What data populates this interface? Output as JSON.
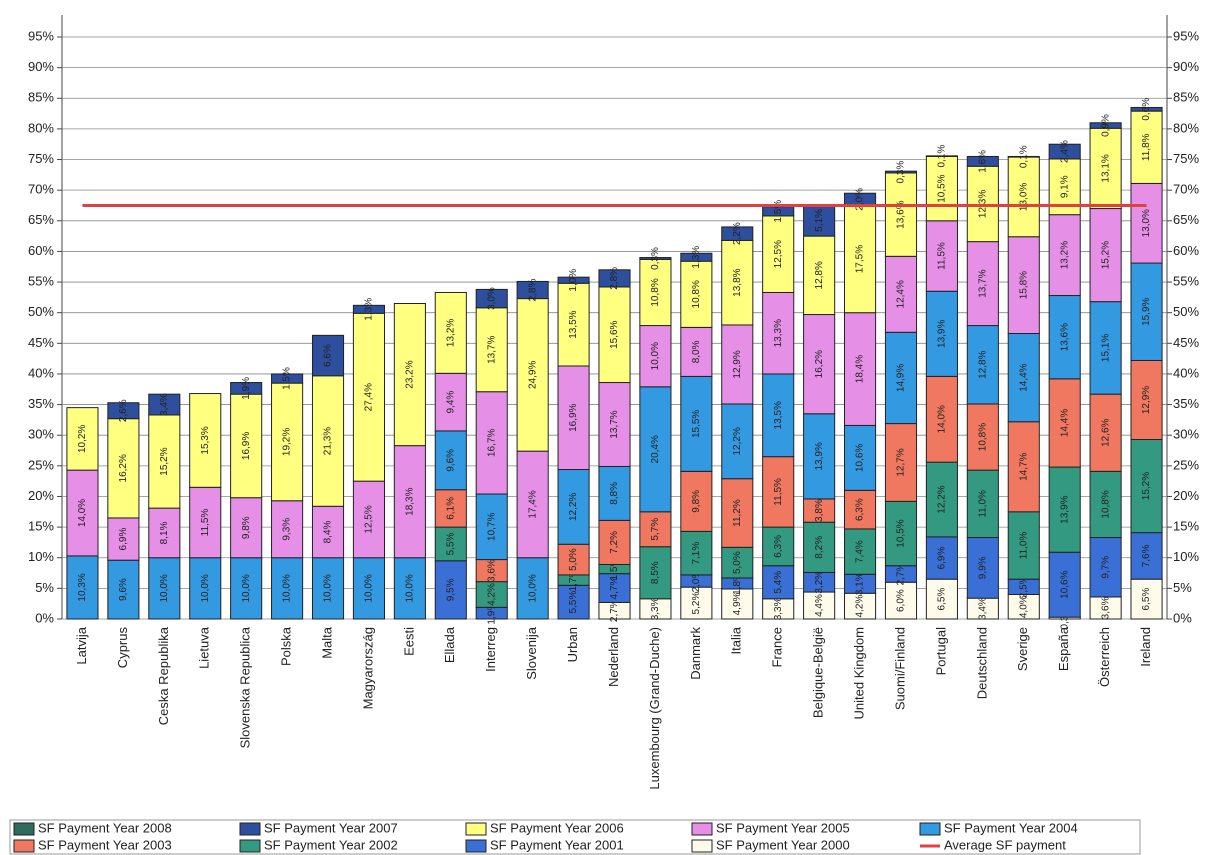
{
  "chart_data": {
    "type": "bar",
    "stacked": true,
    "categories": [
      "Latvija",
      "Cyprus",
      "Ceska Republika",
      "Lietuva",
      "Slovenska Republica",
      "Polska",
      "Malta",
      "Magyarország",
      "Eesti",
      "Ellada",
      "Interreg",
      "Slovenija",
      "Urban",
      "Nederland",
      "Luxembourg (Grand-Duche)",
      "Danmark",
      "Italia",
      "France",
      "Belgique-België",
      "United Kingdom",
      "Suomi/Finland",
      "Portugal",
      "Deutschland",
      "Sverige",
      "España",
      "Österreich",
      "Ireland"
    ],
    "series": [
      {
        "name": "SF Payment Year 2008",
        "color": "#2f6b5e",
        "values": [
          null,
          null,
          null,
          null,
          null,
          null,
          null,
          null,
          null,
          null,
          null,
          null,
          null,
          null,
          null,
          null,
          null,
          null,
          null,
          null,
          null,
          null,
          null,
          null,
          null,
          null,
          null
        ]
      },
      {
        "name": "SF Payment Year 2007",
        "color": "#2d4f9e",
        "values": [
          null,
          2.6,
          3.4,
          null,
          1.9,
          1.5,
          6.6,
          1.3,
          null,
          null,
          3.0,
          2.8,
          1.0,
          2.8,
          0.3,
          1.3,
          2.2,
          1.5,
          5.1,
          2.0,
          0.3,
          0.1,
          1.6,
          0.1,
          2.4,
          0.9,
          0.6
        ],
        "value_labels": [
          null,
          "2,6%",
          "3,4%",
          null,
          "1,9%",
          "1,5%",
          "6,6%",
          "1,3%",
          null,
          null,
          "3,0%",
          "2,8%",
          "1,0%",
          "2,8%",
          "0,3%",
          "1,3%",
          "2,2%",
          "1,5%",
          "5,1%",
          "2,0%",
          "0,3%",
          "0,1%",
          "1,6%",
          "0,1%",
          "2,4%",
          "0,9%",
          "0,6%"
        ]
      },
      {
        "name": "SF Payment Year 2006",
        "color": "#ffff80",
        "values": [
          10.2,
          16.2,
          15.2,
          15.3,
          16.9,
          19.2,
          21.3,
          27.4,
          23.2,
          13.2,
          13.7,
          24.9,
          13.5,
          15.6,
          10.8,
          10.8,
          13.8,
          12.5,
          12.8,
          17.5,
          13.6,
          10.5,
          12.3,
          13.0,
          9.1,
          13.1,
          11.8
        ],
        "value_labels": [
          "10,2%",
          "16,2%",
          "15,2%",
          "15,3%",
          "16,9%",
          "19,2%",
          "21,3%",
          "27,4%",
          "23,2%",
          "13,2%",
          "13,7%",
          "24,9%",
          "13,5%",
          "15,6%",
          "10,8%",
          "10,8%",
          "13,8%",
          "12,5%",
          "12,8%",
          "17,5%",
          "13,6%",
          "10,5%",
          "12,3%",
          "13,0%",
          "9,1%",
          "13,1%",
          "11,8%"
        ]
      },
      {
        "name": "SF Payment Year 2005",
        "color": "#e68fe6",
        "values": [
          14.0,
          6.9,
          8.1,
          11.5,
          9.8,
          9.3,
          8.4,
          12.5,
          18.3,
          9.4,
          16.7,
          17.4,
          16.9,
          13.7,
          10.0,
          8.0,
          12.9,
          13.3,
          16.2,
          18.4,
          12.4,
          11.5,
          13.7,
          15.8,
          13.2,
          15.2,
          13.0
        ],
        "value_labels": [
          "14,0%",
          "6,9%",
          "8,1%",
          "11,5%",
          "9,8%",
          "9,3%",
          "8,4%",
          "12,5%",
          "18,3%",
          "9,4%",
          "16,7%",
          "17,4%",
          "16,9%",
          "13,7%",
          "10,0%",
          "8,0%",
          "12,9%",
          "13,3%",
          "16,2%",
          "18,4%",
          "12,4%",
          "11,5%",
          "13,7%",
          "15,8%",
          "13,2%",
          "15,2%",
          "13,0%"
        ]
      },
      {
        "name": "SF Payment Year 2004",
        "color": "#3399e0",
        "values": [
          10.3,
          9.6,
          10.0,
          10.0,
          10.0,
          10.0,
          10.0,
          10.0,
          10.0,
          9.6,
          10.7,
          10.0,
          12.2,
          8.8,
          20.4,
          15.5,
          12.2,
          13.5,
          13.9,
          10.6,
          14.9,
          13.9,
          12.8,
          14.4,
          13.6,
          15.1,
          15.9
        ],
        "value_labels": [
          "10,3%",
          "9,6%",
          "10,0%",
          "10,0%",
          "10,0%",
          "10,0%",
          "10,0%",
          "10,0%",
          "10,0%",
          "9,6%",
          "10,7%",
          "10,0%",
          "12,2%",
          "8,8%",
          "20,4%",
          "15,5%",
          "12,2%",
          "13,5%",
          "13,9%",
          "10,6%",
          "14,9%",
          "13,9%",
          "12,8%",
          "14,4%",
          "13,6%",
          "15,1%",
          "15,9%"
        ]
      },
      {
        "name": "SF Payment Year 2003",
        "color": "#f07860",
        "values": [
          null,
          null,
          null,
          null,
          null,
          null,
          null,
          null,
          null,
          6.1,
          3.6,
          null,
          5.0,
          7.2,
          5.7,
          9.8,
          11.2,
          11.5,
          3.8,
          6.3,
          12.7,
          14.0,
          10.8,
          14.7,
          14.4,
          12.6,
          12.9
        ],
        "value_labels": [
          null,
          null,
          null,
          null,
          null,
          null,
          null,
          null,
          null,
          "6,1%",
          "3,6%",
          null,
          "5,0%",
          "7,2%",
          "5,7%",
          "9,8%",
          "11,2%",
          "11,5%",
          "3,8%",
          "6,3%",
          "12,7%",
          "14,0%",
          "10,8%",
          "14,7%",
          "14,4%",
          "12,6%",
          "12,9%"
        ]
      },
      {
        "name": "SF Payment Year 2002",
        "color": "#339980",
        "values": [
          null,
          null,
          null,
          null,
          null,
          null,
          null,
          null,
          null,
          5.5,
          4.2,
          null,
          1.7,
          1.5,
          8.5,
          7.1,
          5.0,
          6.3,
          8.2,
          7.4,
          10.5,
          12.2,
          11.0,
          11.0,
          13.9,
          10.8,
          15.2
        ],
        "value_labels": [
          null,
          null,
          null,
          null,
          null,
          null,
          null,
          null,
          null,
          "5,5%",
          "4,2%",
          null,
          "1,7%",
          "1,5%",
          "8,5%",
          "7,1%",
          "5,0%",
          "6,3%",
          "8,2%",
          "7,4%",
          "10,5%",
          "12,2%",
          "11,0%",
          "11,0%",
          "13,9%",
          "10,8%",
          "15,2%"
        ]
      },
      {
        "name": "SF Payment Year 2001",
        "color": "#3a6fd6",
        "values": [
          null,
          null,
          null,
          null,
          null,
          null,
          null,
          null,
          null,
          9.5,
          1.9,
          null,
          5.5,
          4.7,
          null,
          2.0,
          1.8,
          5.4,
          3.2,
          3.1,
          2.7,
          6.9,
          9.9,
          2.5,
          10.6,
          9.7,
          7.6
        ],
        "value_labels": [
          null,
          null,
          null,
          null,
          null,
          null,
          null,
          null,
          null,
          "9,5%",
          "1,9%",
          null,
          "5,5%",
          "4,7%",
          null,
          "2,0%",
          "1,8%",
          "5,4%",
          "3,2%",
          "3,1%",
          "2,7%",
          "6,9%",
          "9,9%",
          "2,5%",
          "10,6%",
          "9,7%",
          "7,6%"
        ]
      },
      {
        "name": "SF Payment Year 2000",
        "color": "#fffbea",
        "values": [
          null,
          null,
          null,
          null,
          null,
          null,
          null,
          null,
          null,
          null,
          null,
          null,
          null,
          2.7,
          3.3,
          5.2,
          4.9,
          3.3,
          4.4,
          4.2,
          6.0,
          6.5,
          3.4,
          4.0,
          0.3,
          3.6,
          6.5
        ],
        "value_labels": [
          null,
          null,
          null,
          null,
          null,
          null,
          null,
          null,
          null,
          null,
          null,
          null,
          null,
          "2,7%",
          "3,3%",
          "5,2%",
          "4,9%",
          "3,3%",
          "4,4%",
          "4,2%",
          "6,0%",
          "6,5%",
          "3,4%",
          "4,0%",
          "0,3%",
          "3,6%",
          "6,5%"
        ]
      }
    ],
    "average": {
      "name": "Average SF payment",
      "value": 67.5,
      "color": "#e04040"
    },
    "ylim": [
      0,
      95
    ],
    "yticks": [
      {
        "value": 0,
        "label": "0%"
      },
      {
        "value": 5,
        "label": "5%"
      },
      {
        "value": 10,
        "label": "10%"
      },
      {
        "value": 15,
        "label": "15%"
      },
      {
        "value": 20,
        "label": "20%"
      },
      {
        "value": 25,
        "label": "25%"
      },
      {
        "value": 30,
        "label": "30%"
      },
      {
        "value": 35,
        "label": "35%"
      },
      {
        "value": 40,
        "label": "40%"
      },
      {
        "value": 45,
        "label": "45%"
      },
      {
        "value": 50,
        "label": "50%"
      },
      {
        "value": 55,
        "label": "55%"
      },
      {
        "value": 60,
        "label": "60%"
      },
      {
        "value": 65,
        "label": "65%"
      },
      {
        "value": 70,
        "label": "70%"
      },
      {
        "value": 75,
        "label": "75%"
      },
      {
        "value": 80,
        "label": "80%"
      },
      {
        "value": 85,
        "label": "85%"
      },
      {
        "value": 90,
        "label": "90%"
      },
      {
        "value": 95,
        "label": "95%"
      }
    ],
    "y2lim": [
      0,
      95
    ],
    "y2ticks": [
      {
        "value": 0,
        "label": "0%"
      },
      {
        "value": 5,
        "label": "5%"
      },
      {
        "value": 10,
        "label": "10%"
      },
      {
        "value": 15,
        "label": "15%"
      },
      {
        "value": 20,
        "label": "20%"
      },
      {
        "value": 25,
        "label": "25%"
      },
      {
        "value": 30,
        "label": "30%"
      },
      {
        "value": 35,
        "label": "35%"
      },
      {
        "value": 40,
        "label": "40%"
      },
      {
        "value": 45,
        "label": "45%"
      },
      {
        "value": 50,
        "label": "50%"
      },
      {
        "value": 55,
        "label": "55%"
      },
      {
        "value": 60,
        "label": "60%"
      },
      {
        "value": 65,
        "label": "65%"
      },
      {
        "value": 70,
        "label": "70%"
      },
      {
        "value": 75,
        "label": "75%"
      },
      {
        "value": 80,
        "label": "80%"
      },
      {
        "value": 85,
        "label": "85%"
      },
      {
        "value": 90,
        "label": "90%"
      },
      {
        "value": 95,
        "label": "95%"
      }
    ],
    "grid": true,
    "legend": "bottom"
  }
}
